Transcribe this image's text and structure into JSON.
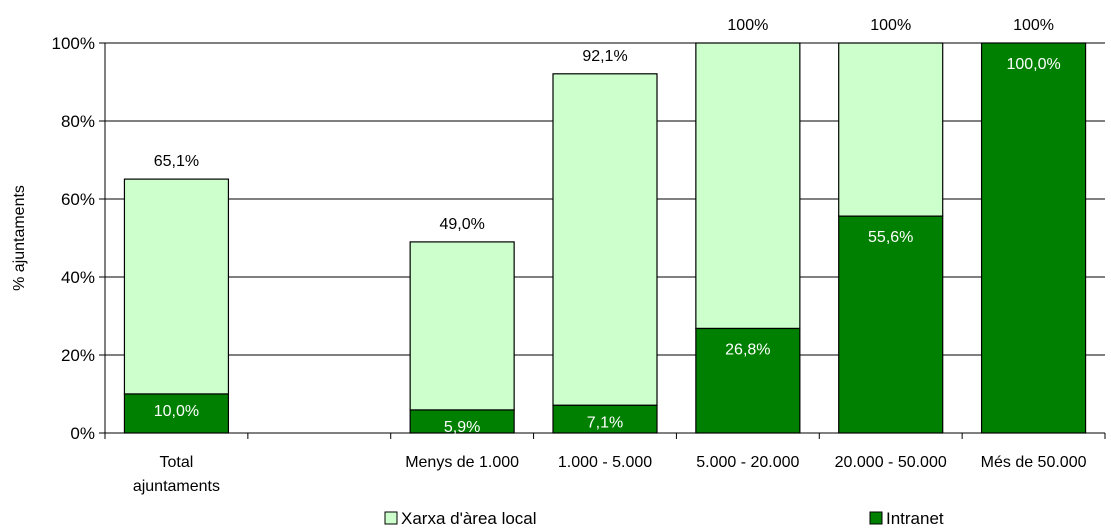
{
  "chart_data": {
    "type": "bar",
    "stacked": true,
    "ylabel": "% ajuntaments",
    "ylim": [
      0,
      100
    ],
    "yticks": [
      "0%",
      "20%",
      "40%",
      "60%",
      "80%",
      "100%"
    ],
    "grid": true,
    "categories": [
      [
        "Total",
        "ajuntaments"
      ],
      [
        ""
      ],
      [
        "Menys de 1.000"
      ],
      [
        "1.000 - 5.000"
      ],
      [
        "5.000 - 20.000"
      ],
      [
        "20.000 - 50.000"
      ],
      [
        "Més de 50.000"
      ]
    ],
    "series": [
      {
        "name": "Intranet",
        "color": "#008000",
        "values": [
          10.0,
          null,
          5.9,
          7.1,
          26.8,
          55.6,
          100.0
        ],
        "labels": [
          "10,0%",
          "",
          "5,9%",
          "7,1%",
          "26,8%",
          "55,6%",
          "100,0%"
        ]
      },
      {
        "name": "Xarxa d'àrea local",
        "color": "#ccffcc",
        "totals": [
          65.1,
          null,
          49.0,
          92.1,
          100,
          100,
          100
        ],
        "labels": [
          "65,1%",
          "",
          "49,0%",
          "92,1%",
          "100%",
          "100%",
          "100%"
        ]
      }
    ],
    "legend": {
      "position": "bottom",
      "items": [
        {
          "name": "Xarxa d'àrea local",
          "color": "#ccffcc"
        },
        {
          "name": "Intranet",
          "color": "#008000"
        }
      ]
    }
  }
}
